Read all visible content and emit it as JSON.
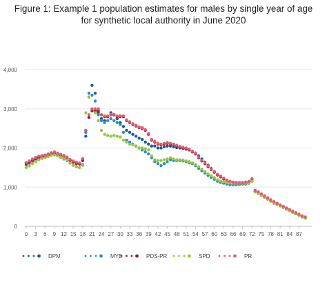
{
  "chart_data": {
    "type": "scatter",
    "title_line1": "Figure 1: Example 1 population estimates for males by single year of age",
    "title_line2": "for synthetic local authority in June 2020",
    "xlabel": "",
    "ylabel": "",
    "x_ticks": [
      "0",
      "3",
      "6",
      "9",
      "12",
      "15",
      "18",
      "21",
      "24",
      "27",
      "30",
      "33",
      "36",
      "39",
      "42",
      "45",
      "48",
      "51",
      "54",
      "57",
      "60",
      "63",
      "66",
      "69",
      "72",
      "75",
      "78",
      "81",
      "84",
      "87"
    ],
    "y_ticks": [
      "0",
      "1,000",
      "2,000",
      "3,000",
      "4,000"
    ],
    "xlim": [
      0,
      90
    ],
    "ylim": [
      0,
      4000
    ],
    "grid": true,
    "legend_position": "bottom",
    "series": [
      {
        "name": "DPM",
        "color": "#1e5a87",
        "values": [
          1620,
          1660,
          1710,
          1750,
          1780,
          1790,
          1800,
          1830,
          1860,
          1870,
          1850,
          1820,
          1800,
          1760,
          1700,
          1660,
          1620,
          1610,
          1700,
          2300,
          3300,
          3600,
          3400,
          2900,
          2750,
          2700,
          2800,
          2900,
          2850,
          2750,
          2650,
          2550,
          2450,
          2400,
          2350,
          2300,
          2250,
          2220,
          2150,
          2100,
          2050,
          2050,
          2000,
          2000,
          2030,
          2050,
          2050,
          2030,
          2010,
          2000,
          1990,
          1970,
          1950,
          1910,
          1870,
          1800,
          1720,
          1640,
          1560,
          1480,
          1400,
          1330,
          1280,
          1230,
          1180,
          1140,
          1120,
          1100,
          1090,
          1080,
          1080,
          1100,
          1160,
          900,
          850,
          800,
          750,
          700,
          650,
          600,
          560,
          520,
          480,
          440,
          400,
          360,
          320,
          280,
          240,
          210
        ]
      },
      {
        "name": "MYE",
        "color": "#2b8cc4",
        "values": [
          1570,
          1610,
          1660,
          1700,
          1730,
          1750,
          1760,
          1790,
          1820,
          1830,
          1800,
          1760,
          1720,
          1680,
          1620,
          1560,
          1520,
          1500,
          1560,
          2400,
          3400,
          3350,
          3200,
          2850,
          2700,
          2650,
          2700,
          2750,
          2700,
          2650,
          2600,
          2400,
          2200,
          2150,
          2100,
          2050,
          2000,
          1950,
          1900,
          1850,
          1750,
          1650,
          1600,
          1550,
          1600,
          1650,
          1700,
          1680,
          1680,
          1680,
          1670,
          1650,
          1620,
          1600,
          1550,
          1480,
          1420,
          1360,
          1300,
          1250,
          1200,
          1150,
          1120,
          1100,
          1080,
          1060,
          1060,
          1060,
          1070,
          1080,
          1080,
          1100,
          1150,
          880,
          840,
          790,
          740,
          690,
          640,
          590,
          560,
          520,
          480,
          440,
          400,
          360,
          320,
          280,
          240,
          210
        ]
      },
      {
        "name": "PDS-PR",
        "color": "#8b1e3f",
        "values": [
          1600,
          1640,
          1690,
          1730,
          1760,
          1780,
          1790,
          1820,
          1850,
          1870,
          1840,
          1810,
          1780,
          1740,
          1680,
          1640,
          1600,
          1590,
          1680,
          2450,
          2780,
          2950,
          2950,
          2950,
          2850,
          2800,
          2800,
          2850,
          2850,
          2800,
          2800,
          2800,
          2700,
          2650,
          2600,
          2560,
          2520,
          2500,
          2450,
          2350,
          2200,
          2150,
          2100,
          2080,
          2100,
          2120,
          2100,
          2080,
          2050,
          2020,
          2000,
          1980,
          1950,
          1900,
          1850,
          1750,
          1670,
          1600,
          1520,
          1450,
          1380,
          1310,
          1260,
          1210,
          1160,
          1130,
          1110,
          1100,
          1100,
          1100,
          1110,
          1130,
          1200,
          900,
          860,
          810,
          760,
          710,
          660,
          610,
          570,
          530,
          490,
          450,
          410,
          370,
          330,
          290,
          250,
          220
        ]
      },
      {
        "name": "SPD",
        "color": "#9ac43c",
        "values": [
          1500,
          1540,
          1600,
          1650,
          1700,
          1730,
          1750,
          1780,
          1810,
          1830,
          1800,
          1770,
          1730,
          1690,
          1620,
          1560,
          1520,
          1500,
          1580,
          2900,
          3300,
          3000,
          2900,
          2700,
          2450,
          2350,
          2320,
          2300,
          2320,
          2300,
          2280,
          2200,
          2150,
          2100,
          2080,
          2050,
          2000,
          2000,
          1980,
          1950,
          1800,
          1700,
          1680,
          1680,
          1700,
          1720,
          1750,
          1720,
          1700,
          1700,
          1690,
          1670,
          1650,
          1620,
          1580,
          1520,
          1460,
          1400,
          1340,
          1290,
          1240,
          1190,
          1160,
          1140,
          1120,
          1110,
          1100,
          1100,
          1100,
          1100,
          1100,
          1100,
          1150,
          880,
          840,
          790,
          740,
          690,
          640,
          590,
          560,
          520,
          480,
          440,
          400,
          360,
          320,
          280,
          240,
          210
        ]
      },
      {
        "name": "PR",
        "color": "#e35b6b",
        "values": [
          1630,
          1670,
          1720,
          1760,
          1790,
          1810,
          1820,
          1850,
          1880,
          1900,
          1870,
          1840,
          1810,
          1770,
          1710,
          1670,
          1640,
          1620,
          1730,
          2450,
          2850,
          3000,
          3000,
          3000,
          2850,
          2820,
          2820,
          2860,
          2860,
          2820,
          2820,
          2820,
          2720,
          2670,
          2620,
          2580,
          2540,
          2520,
          2470,
          2370,
          2220,
          2170,
          2120,
          2100,
          2120,
          2140,
          2120,
          2100,
          2070,
          2040,
          2020,
          2000,
          1970,
          1920,
          1870,
          1770,
          1690,
          1620,
          1540,
          1470,
          1400,
          1330,
          1280,
          1230,
          1180,
          1150,
          1130,
          1120,
          1120,
          1120,
          1130,
          1150,
          1220,
          920,
          880,
          830,
          780,
          730,
          680,
          630,
          590,
          550,
          510,
          470,
          430,
          390,
          350,
          310,
          270,
          240
        ]
      }
    ]
  }
}
